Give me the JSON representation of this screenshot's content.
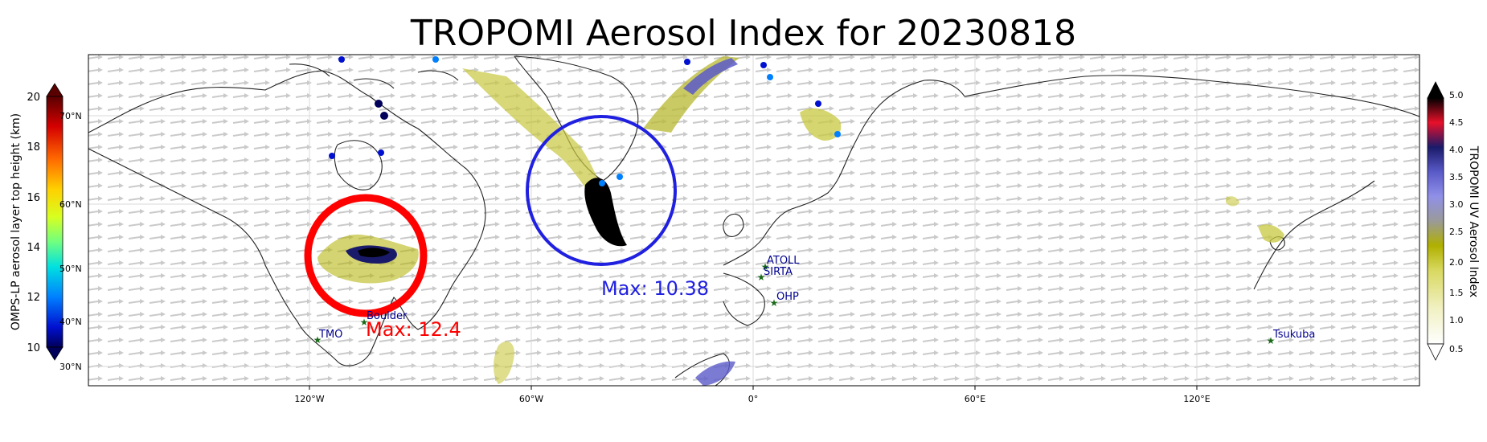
{
  "title": "TROPOMI Aerosol Index for 20230818",
  "x_axis": {
    "tick_labels": [
      "120°W",
      "60°W",
      "0°",
      "60°E",
      "120°E"
    ]
  },
  "lat_labels": [
    "70°N",
    "60°N",
    "50°N",
    "40°N",
    "30°N"
  ],
  "left_colorbar": {
    "label": "OMPS-LP aerosol layer top height (km)",
    "ticks": [
      "20",
      "18",
      "16",
      "14",
      "12",
      "10"
    ],
    "colors": [
      "#5a0000",
      "#d40000",
      "#ff6a00",
      "#ffd000",
      "#d8ff20",
      "#70ff80",
      "#00e0e0",
      "#0080ff",
      "#0010d0",
      "#00005a"
    ]
  },
  "right_colorbar": {
    "label": "TROPOMI UV Aerosol Index",
    "ticks": [
      "5.0",
      "4.5",
      "4.0",
      "3.5",
      "3.0",
      "2.5",
      "2.0",
      "1.5",
      "1.0",
      "0.5"
    ],
    "colors": [
      "#000000",
      "#e8102a",
      "#1a1a6a",
      "#5a5ac8",
      "#9090e8",
      "#9a9a9a",
      "#b0b000",
      "#d8d860",
      "#f0f0c0",
      "#ffffff"
    ]
  },
  "annotations": {
    "red_circle": {
      "label": "Max: 12.4",
      "color": "#ff0000"
    },
    "blue_circle": {
      "label": "Max: 10.38",
      "color": "#2020e0"
    }
  },
  "stations": [
    "TMO",
    "Boulder",
    "ATOLL",
    "SIRTA",
    "OHP",
    "Tsukuba"
  ],
  "station_color": "#000090",
  "station_marker_color": "#1a6a1a"
}
